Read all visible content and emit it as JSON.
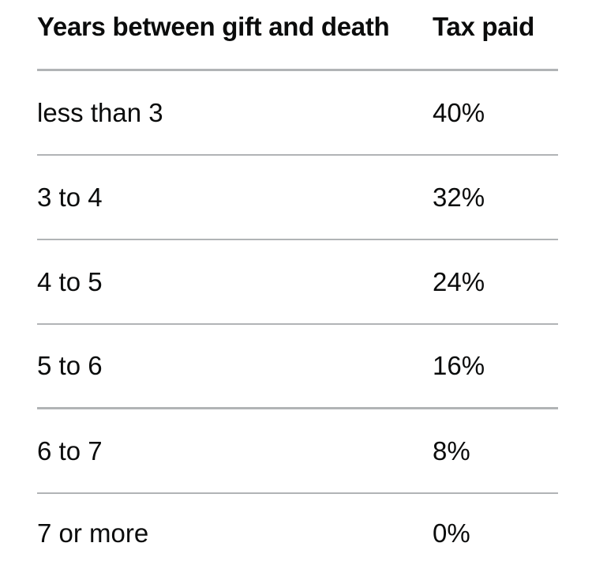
{
  "table": {
    "headers": {
      "years": "Years between gift and death",
      "tax": "Tax paid"
    },
    "rows": [
      {
        "years": "less than 3",
        "tax": "40%"
      },
      {
        "years": "3 to 4",
        "tax": "32%"
      },
      {
        "years": "4 to 5",
        "tax": "24%"
      },
      {
        "years": "5 to 6",
        "tax": "16%"
      },
      {
        "years": "6 to 7",
        "tax": "8%"
      },
      {
        "years": "7 or more",
        "tax": "0%"
      }
    ]
  }
}
